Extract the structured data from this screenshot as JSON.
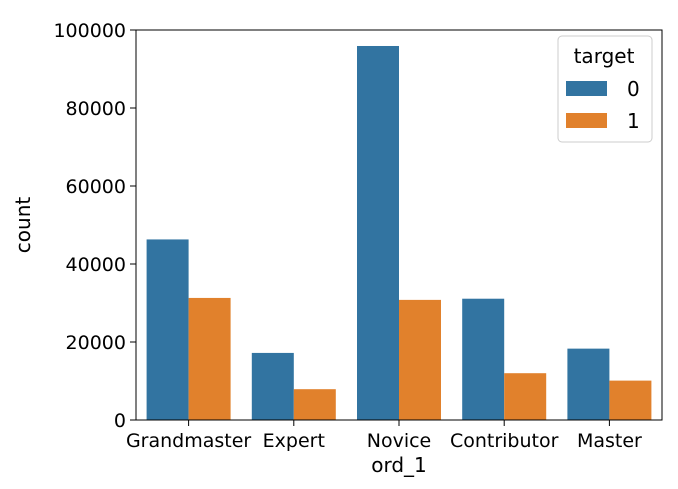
{
  "chart_data": {
    "type": "bar",
    "title": "",
    "xlabel": "ord_1",
    "ylabel": "count",
    "categories": [
      "Grandmaster",
      "Expert",
      "Novice",
      "Contributor",
      "Master"
    ],
    "series": [
      {
        "name": "0",
        "color": "#3274a1",
        "values": [
          46300,
          17200,
          95900,
          31100,
          18300
        ]
      },
      {
        "name": "1",
        "color": "#e1812c",
        "values": [
          31300,
          7900,
          30800,
          12000,
          10100
        ]
      }
    ],
    "ylim": [
      0,
      100000
    ],
    "yticks": [
      0,
      20000,
      40000,
      60000,
      80000,
      100000
    ],
    "grid": false,
    "legend": {
      "title": "target",
      "placement": "top-right"
    }
  }
}
